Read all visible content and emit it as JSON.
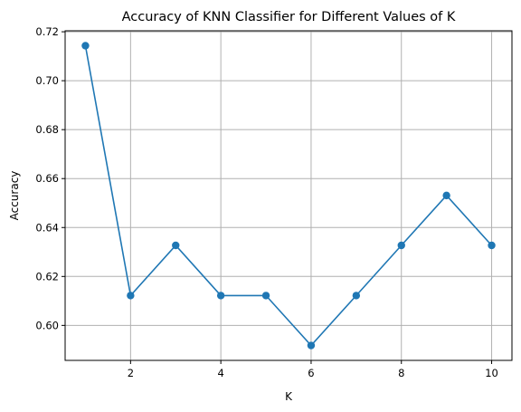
{
  "chart_data": {
    "type": "line",
    "title": "Accuracy of KNN Classifier for Different Values of K",
    "xlabel": "K",
    "ylabel": "Accuracy",
    "x": [
      1,
      2,
      3,
      4,
      5,
      6,
      7,
      8,
      9,
      10
    ],
    "series": [
      {
        "values": [
          0.7143,
          0.6122,
          0.6327,
          0.6122,
          0.6122,
          0.5918,
          0.6122,
          0.6327,
          0.6531,
          0.6327
        ],
        "color": "#1f77b4",
        "marker": "circle"
      }
    ],
    "xlim": [
      0.55,
      10.45
    ],
    "ylim": [
      0.5857,
      0.7204
    ],
    "xticks": [
      2,
      4,
      6,
      8,
      10
    ],
    "xtick_labels": [
      "2",
      "4",
      "6",
      "8",
      "10"
    ],
    "yticks": [
      0.6,
      0.62,
      0.64,
      0.66,
      0.68,
      0.7,
      0.72
    ],
    "ytick_labels": [
      "0.60",
      "0.62",
      "0.64",
      "0.66",
      "0.68",
      "0.70",
      "0.72"
    ],
    "grid": true,
    "legend": "none"
  }
}
